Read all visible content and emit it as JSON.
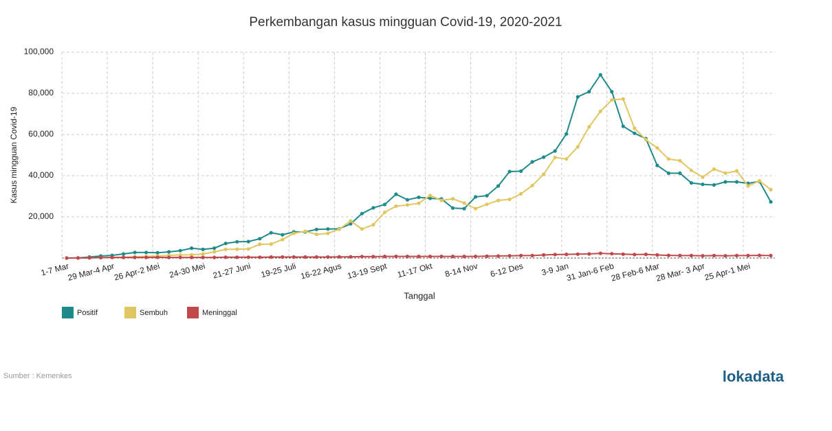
{
  "chart_data": {
    "type": "line",
    "title": "Perkembangan kasus mingguan Covid-19, 2020-2021",
    "x_label": "Tanggal",
    "y_label": "Kasus mingguan Covid-19",
    "source": "Sumber : Kemenkes",
    "logo": "lokadata",
    "categories": [
      "1-7 Mar",
      null,
      null,
      null,
      "29 Mar-4 Apr",
      null,
      null,
      null,
      "26 Apr-2 Mei",
      null,
      null,
      null,
      "24-30 Mei",
      null,
      null,
      null,
      "21-27 Juni",
      null,
      null,
      null,
      "19-25 Juli",
      null,
      null,
      null,
      "16-22 Agus",
      null,
      null,
      null,
      "13-19 Sept",
      null,
      null,
      null,
      "11-17 Okt",
      null,
      null,
      null,
      "8-14 Nov",
      null,
      null,
      null,
      "6-12 Des",
      null,
      null,
      null,
      "3-9 Jan",
      null,
      null,
      null,
      "31 Jan-6 Feb",
      null,
      null,
      null,
      "28 Feb-6 Mar",
      null,
      null,
      null,
      "28 Mar- 3 Apr",
      null,
      null,
      null,
      "25 Apr-1 Mei",
      null,
      null
    ],
    "series": [
      {
        "name": "Positif",
        "color": "#1f8a8a",
        "values": [
          2,
          100,
          500,
          1000,
          1300,
          2000,
          2700,
          2700,
          2600,
          3000,
          3600,
          4800,
          4200,
          4800,
          7100,
          7900,
          8000,
          9400,
          12300,
          11300,
          12700,
          12700,
          13900,
          14100,
          14200,
          16600,
          21600,
          24400,
          26000,
          31000,
          28300,
          29500,
          29000,
          28700,
          24300,
          24000,
          29700,
          30300,
          35000,
          42000,
          42200,
          46700,
          49000,
          52000,
          60300,
          78300,
          80800,
          89000,
          80800,
          64000,
          60600,
          58000,
          45000,
          41200,
          41200,
          36500,
          35800,
          35500,
          37000,
          37000,
          36300,
          37200,
          27300
        ]
      },
      {
        "name": "Sembuh",
        "color": "#e0c660",
        "values": [
          0,
          0,
          100,
          200,
          300,
          400,
          600,
          800,
          1000,
          1300,
          1500,
          1600,
          2000,
          3000,
          4200,
          4300,
          4400,
          6700,
          6800,
          9000,
          12000,
          13000,
          11500,
          12000,
          14000,
          18000,
          14100,
          16200,
          22200,
          25200,
          25800,
          26600,
          30400,
          28000,
          28800,
          26700,
          24000,
          26100,
          28000,
          28500,
          31200,
          35200,
          40700,
          48900,
          48100,
          54000,
          63700,
          71300,
          76800,
          77300,
          63000,
          57500,
          53500,
          48100,
          47300,
          42600,
          39300,
          43200,
          41200,
          42300,
          35000,
          37500,
          33200
        ]
      },
      {
        "name": "Meninggal",
        "color": "#c0474a",
        "values": [
          0,
          50,
          100,
          200,
          300,
          300,
          300,
          300,
          350,
          300,
          300,
          300,
          300,
          300,
          400,
          400,
          400,
          400,
          500,
          500,
          500,
          500,
          500,
          500,
          600,
          600,
          700,
          700,
          800,
          800,
          800,
          800,
          800,
          800,
          800,
          800,
          800,
          900,
          1000,
          1100,
          1200,
          1200,
          1500,
          1700,
          1800,
          1900,
          2000,
          2300,
          2100,
          1900,
          1700,
          1800,
          1500,
          1300,
          1200,
          1200,
          1100,
          1200,
          1100,
          1200,
          1200,
          1300,
          1200
        ]
      }
    ],
    "ylim": [
      0,
      100000
    ],
    "yticks": [
      {
        "value": 20000,
        "label": "20,000"
      },
      {
        "value": 40000,
        "label": "40,000"
      },
      {
        "value": 60000,
        "label": "60,000"
      },
      {
        "value": 80000,
        "label": "80,000"
      },
      {
        "value": 100000,
        "label": "100,000"
      }
    ],
    "grid": true
  }
}
